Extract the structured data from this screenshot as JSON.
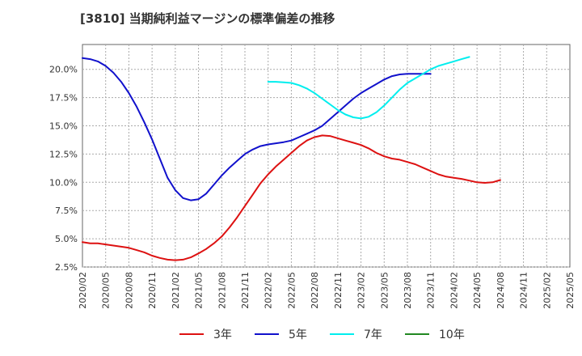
{
  "chart_data": {
    "type": "line",
    "title": "[3810]  当期純利益マージンの標準偏差の推移",
    "xlabel": "",
    "ylabel": "",
    "ylim": [
      2.5,
      22.2
    ],
    "x_ticks": [
      "2020/02",
      "2020/05",
      "2020/08",
      "2020/11",
      "2021/02",
      "2021/05",
      "2021/08",
      "2021/11",
      "2022/02",
      "2022/05",
      "2022/08",
      "2022/11",
      "2023/02",
      "2023/05",
      "2023/08",
      "2023/11",
      "2024/02",
      "2024/05",
      "2024/08",
      "2024/11",
      "2025/02",
      "2025/05"
    ],
    "y_ticks": [
      "2.5%",
      "5.0%",
      "7.5%",
      "10.0%",
      "12.5%",
      "15.0%",
      "17.5%",
      "20.0%"
    ],
    "grid": true,
    "legend_position": "bottom",
    "series": [
      {
        "name": "3年",
        "color": "#dd1111",
        "points": [
          [
            "2020/02",
            4.7
          ],
          [
            "2020/03",
            4.6
          ],
          [
            "2020/04",
            4.6
          ],
          [
            "2020/05",
            4.5
          ],
          [
            "2020/06",
            4.4
          ],
          [
            "2020/07",
            4.3
          ],
          [
            "2020/08",
            4.2
          ],
          [
            "2020/09",
            4.0
          ],
          [
            "2020/10",
            3.8
          ],
          [
            "2020/11",
            3.5
          ],
          [
            "2020/12",
            3.3
          ],
          [
            "2021/01",
            3.15
          ],
          [
            "2021/02",
            3.1
          ],
          [
            "2021/03",
            3.15
          ],
          [
            "2021/04",
            3.35
          ],
          [
            "2021/05",
            3.7
          ],
          [
            "2021/06",
            4.1
          ],
          [
            "2021/07",
            4.6
          ],
          [
            "2021/08",
            5.2
          ],
          [
            "2021/09",
            6.0
          ],
          [
            "2021/10",
            6.9
          ],
          [
            "2021/11",
            7.9
          ],
          [
            "2021/12",
            8.9
          ],
          [
            "2022/01",
            9.9
          ],
          [
            "2022/02",
            10.7
          ],
          [
            "2022/03",
            11.4
          ],
          [
            "2022/04",
            12.0
          ],
          [
            "2022/05",
            12.6
          ],
          [
            "2022/06",
            13.2
          ],
          [
            "2022/07",
            13.7
          ],
          [
            "2022/08",
            14.0
          ],
          [
            "2022/09",
            14.15
          ],
          [
            "2022/10",
            14.1
          ],
          [
            "2022/11",
            13.9
          ],
          [
            "2022/12",
            13.7
          ],
          [
            "2023/01",
            13.5
          ],
          [
            "2023/02",
            13.3
          ],
          [
            "2023/03",
            13.0
          ],
          [
            "2023/04",
            12.6
          ],
          [
            "2023/05",
            12.3
          ],
          [
            "2023/06",
            12.1
          ],
          [
            "2023/07",
            12.0
          ],
          [
            "2023/08",
            11.8
          ],
          [
            "2023/09",
            11.6
          ],
          [
            "2023/10",
            11.3
          ],
          [
            "2023/11",
            11.0
          ],
          [
            "2023/12",
            10.7
          ],
          [
            "2024/01",
            10.5
          ],
          [
            "2024/02",
            10.4
          ],
          [
            "2024/03",
            10.3
          ],
          [
            "2024/04",
            10.15
          ],
          [
            "2024/05",
            10.0
          ],
          [
            "2024/06",
            9.95
          ],
          [
            "2024/07",
            10.0
          ],
          [
            "2024/08",
            10.2
          ]
        ]
      },
      {
        "name": "5年",
        "color": "#1111cc",
        "points": [
          [
            "2020/02",
            21.0
          ],
          [
            "2020/03",
            20.9
          ],
          [
            "2020/04",
            20.7
          ],
          [
            "2020/05",
            20.3
          ],
          [
            "2020/06",
            19.7
          ],
          [
            "2020/07",
            18.9
          ],
          [
            "2020/08",
            17.9
          ],
          [
            "2020/09",
            16.7
          ],
          [
            "2020/10",
            15.3
          ],
          [
            "2020/11",
            13.8
          ],
          [
            "2020/12",
            12.1
          ],
          [
            "2021/01",
            10.4
          ],
          [
            "2021/02",
            9.3
          ],
          [
            "2021/03",
            8.6
          ],
          [
            "2021/04",
            8.4
          ],
          [
            "2021/05",
            8.5
          ],
          [
            "2021/06",
            9.0
          ],
          [
            "2021/07",
            9.8
          ],
          [
            "2021/08",
            10.6
          ],
          [
            "2021/09",
            11.3
          ],
          [
            "2021/10",
            11.9
          ],
          [
            "2021/11",
            12.5
          ],
          [
            "2021/12",
            12.9
          ],
          [
            "2022/01",
            13.2
          ],
          [
            "2022/02",
            13.35
          ],
          [
            "2022/03",
            13.45
          ],
          [
            "2022/04",
            13.55
          ],
          [
            "2022/05",
            13.7
          ],
          [
            "2022/06",
            14.0
          ],
          [
            "2022/07",
            14.3
          ],
          [
            "2022/08",
            14.6
          ],
          [
            "2022/09",
            15.0
          ],
          [
            "2022/10",
            15.6
          ],
          [
            "2022/11",
            16.2
          ],
          [
            "2022/12",
            16.8
          ],
          [
            "2023/01",
            17.4
          ],
          [
            "2023/02",
            17.9
          ],
          [
            "2023/03",
            18.3
          ],
          [
            "2023/04",
            18.7
          ],
          [
            "2023/05",
            19.1
          ],
          [
            "2023/06",
            19.4
          ],
          [
            "2023/07",
            19.55
          ],
          [
            "2023/08",
            19.6
          ],
          [
            "2023/09",
            19.6
          ],
          [
            "2023/10",
            19.6
          ],
          [
            "2023/11",
            19.6
          ]
        ]
      },
      {
        "name": "7年",
        "color": "#00eeee",
        "points": [
          [
            "2022/02",
            18.9
          ],
          [
            "2022/03",
            18.9
          ],
          [
            "2022/04",
            18.85
          ],
          [
            "2022/05",
            18.8
          ],
          [
            "2022/06",
            18.6
          ],
          [
            "2022/07",
            18.3
          ],
          [
            "2022/08",
            17.9
          ],
          [
            "2022/09",
            17.4
          ],
          [
            "2022/10",
            16.9
          ],
          [
            "2022/11",
            16.4
          ],
          [
            "2022/12",
            16.0
          ],
          [
            "2023/01",
            15.75
          ],
          [
            "2023/02",
            15.65
          ],
          [
            "2023/03",
            15.8
          ],
          [
            "2023/04",
            16.2
          ],
          [
            "2023/05",
            16.8
          ],
          [
            "2023/06",
            17.5
          ],
          [
            "2023/07",
            18.2
          ],
          [
            "2023/08",
            18.8
          ],
          [
            "2023/09",
            19.2
          ],
          [
            "2023/10",
            19.6
          ],
          [
            "2023/11",
            20.0
          ],
          [
            "2023/12",
            20.3
          ],
          [
            "2024/01",
            20.5
          ],
          [
            "2024/02",
            20.7
          ],
          [
            "2024/03",
            20.9
          ],
          [
            "2024/04",
            21.1
          ]
        ]
      },
      {
        "name": "10年",
        "color": "#228822",
        "points": []
      }
    ]
  }
}
